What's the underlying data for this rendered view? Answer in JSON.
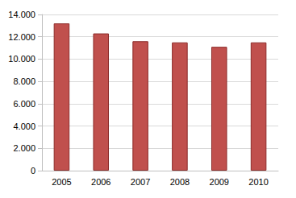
{
  "chart_data": {
    "type": "bar",
    "categories": [
      "2005",
      "2006",
      "2007",
      "2008",
      "2009",
      "2010"
    ],
    "values": [
      13200,
      12300,
      11600,
      11500,
      11100,
      11500
    ],
    "color": "#c0504d",
    "ylim": [
      0,
      14000
    ],
    "yticks": [
      0,
      {
        "value": 2000,
        "label": "2.000"
      },
      {
        "value": 4000,
        "label": "4.000"
      },
      {
        "value": 6000,
        "label": "6.000"
      },
      {
        "value": 8000,
        "label": "8.000"
      },
      {
        "value": 10000,
        "label": "10.000"
      },
      {
        "value": 12000,
        "label": "12.000"
      },
      {
        "value": 14000,
        "label": "14.000"
      }
    ],
    "grid": true
  }
}
